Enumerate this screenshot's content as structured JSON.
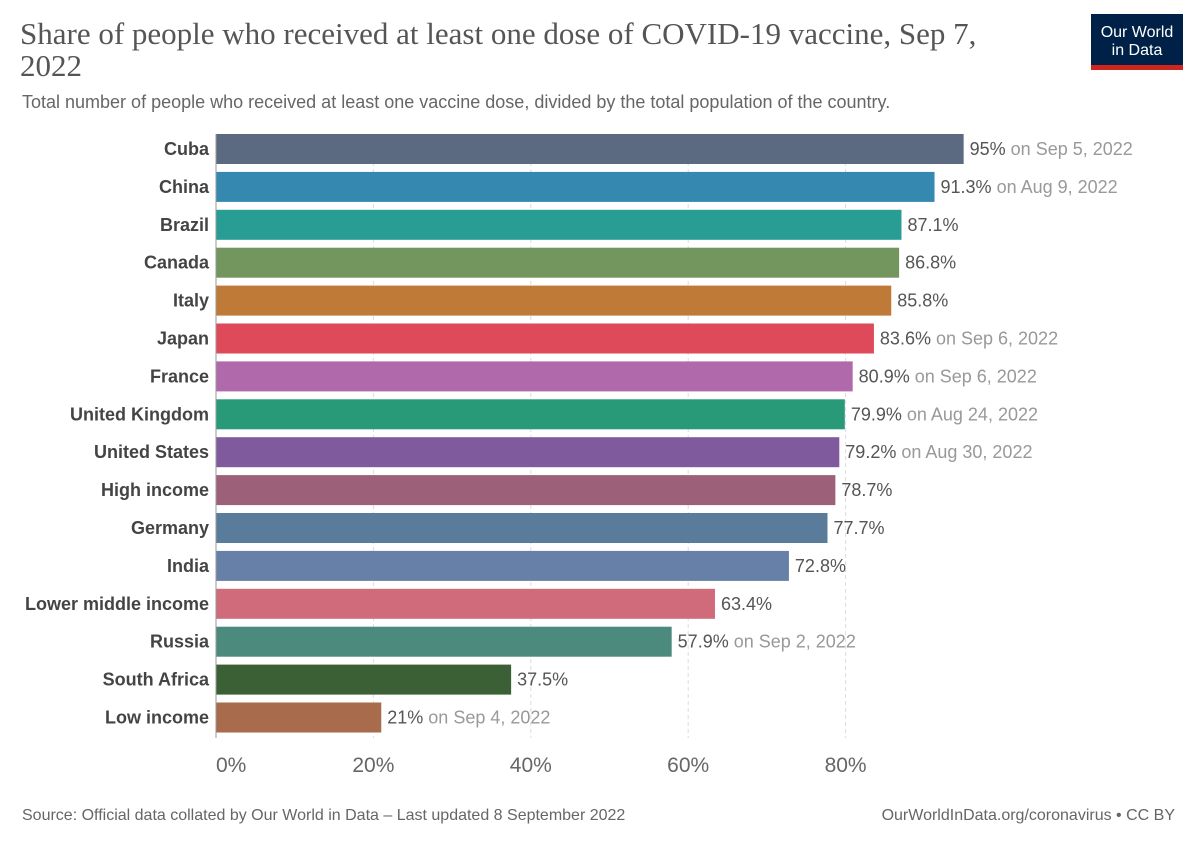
{
  "header": {
    "title": "Share of people who received at least one dose of COVID-19 vaccine, Sep 7, 2022",
    "subtitle": "Total number of people who received at least one vaccine dose, divided by the total population of the country.",
    "logo_line1": "Our World",
    "logo_line2": "in Data"
  },
  "footer": {
    "source": "Source: Official data collated by Our World in Data – Last updated 8 September 2022",
    "link": "OurWorldInData.org/coronavirus • CC BY"
  },
  "colors": {
    "logo_bg": "#002147",
    "logo_accent": "#ce261e"
  },
  "chart_data": {
    "type": "bar",
    "orientation": "horizontal",
    "xlim": [
      0,
      95
    ],
    "xticks": [
      0,
      20,
      40,
      60,
      80
    ],
    "xtick_labels": [
      "0%",
      "20%",
      "40%",
      "60%",
      "80%"
    ],
    "grid": true,
    "categories": [
      "Cuba",
      "China",
      "Brazil",
      "Canada",
      "Italy",
      "Japan",
      "France",
      "United Kingdom",
      "United States",
      "High income",
      "Germany",
      "India",
      "Lower middle income",
      "Russia",
      "South Africa",
      "Low income"
    ],
    "values": [
      95,
      91.3,
      87.1,
      86.8,
      85.8,
      83.6,
      80.9,
      79.9,
      79.2,
      78.7,
      77.7,
      72.8,
      63.4,
      57.9,
      37.5,
      21
    ],
    "value_labels": [
      "95%",
      "91.3%",
      "87.1%",
      "86.8%",
      "85.8%",
      "83.6%",
      "80.9%",
      "79.9%",
      "79.2%",
      "78.7%",
      "77.7%",
      "72.8%",
      "63.4%",
      "57.9%",
      "37.5%",
      "21%"
    ],
    "date_notes": [
      "on Sep 5, 2022",
      "on Aug 9, 2022",
      "",
      "",
      "",
      "on Sep 6, 2022",
      "on Sep 6, 2022",
      "on Aug 24, 2022",
      "on Aug 30, 2022",
      "",
      "",
      "",
      "",
      "on Sep 2, 2022",
      "",
      "on Sep 4, 2022"
    ],
    "bar_colors": [
      "#5b6a80",
      "#3589b0",
      "#279d94",
      "#73955e",
      "#bf7a38",
      "#df4a5b",
      "#b06aab",
      "#299a78",
      "#7f5b9e",
      "#9d6079",
      "#597c9a",
      "#6680a8",
      "#cf6b7a",
      "#4b8a7d",
      "#3b6035",
      "#a86b4b"
    ]
  }
}
